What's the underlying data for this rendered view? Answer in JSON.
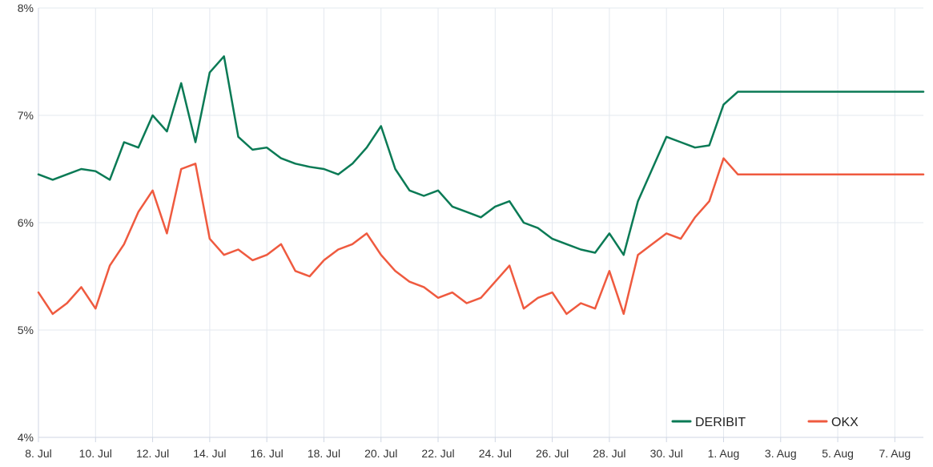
{
  "chart_data": {
    "type": "line",
    "title": "",
    "xlabel": "",
    "ylabel": "",
    "ylim": [
      4,
      8
    ],
    "y_ticks": [
      "4%",
      "5%",
      "6%",
      "7%",
      "8%"
    ],
    "x_ticks": [
      "8. Jul",
      "10. Jul",
      "12. Jul",
      "14. Jul",
      "16. Jul",
      "18. Jul",
      "20. Jul",
      "22. Jul",
      "24. Jul",
      "26. Jul",
      "28. Jul",
      "30. Jul",
      "1. Aug",
      "3. Aug",
      "5. Aug",
      "7. Aug"
    ],
    "x_range_days": [
      0,
      31
    ],
    "grid": true,
    "legend": "bottom-right",
    "colors": {
      "DERIBIT": "#0a7a55",
      "OKX": "#ef5a3f",
      "grid": "#e3e8ef",
      "axis": "#cfd6e3"
    },
    "series": [
      {
        "name": "DERIBIT",
        "x": [
          0,
          0.5,
          1,
          1.5,
          2,
          2.5,
          3,
          3.5,
          4,
          4.5,
          5,
          5.5,
          6,
          6.5,
          7,
          7.5,
          8,
          8.5,
          9,
          9.5,
          10,
          10.5,
          11,
          11.5,
          12,
          12.5,
          13,
          13.5,
          14,
          14.5,
          15,
          15.5,
          16,
          16.5,
          17,
          17.5,
          18,
          18.5,
          19,
          19.5,
          20,
          20.5,
          21,
          21.5,
          22,
          22.5,
          23,
          23.5,
          24,
          24.5,
          25,
          25.5,
          26,
          26.5,
          27,
          27.5,
          28,
          28.5,
          29,
          29.5,
          30,
          30.5,
          31
        ],
        "values": [
          6.45,
          6.4,
          6.45,
          6.5,
          6.48,
          6.4,
          6.75,
          6.7,
          7.0,
          6.85,
          7.3,
          6.75,
          7.4,
          7.55,
          6.8,
          6.68,
          6.7,
          6.6,
          6.55,
          6.52,
          6.5,
          6.45,
          6.55,
          6.7,
          6.9,
          6.5,
          6.3,
          6.25,
          6.3,
          6.15,
          6.1,
          6.05,
          6.15,
          6.2,
          6.0,
          5.95,
          5.85,
          5.8,
          5.75,
          5.72,
          5.9,
          5.7,
          6.2,
          6.5,
          6.8,
          6.75,
          6.7,
          6.72,
          7.1,
          7.22,
          7.22,
          7.22,
          7.22,
          7.22,
          7.22,
          7.22,
          7.22,
          7.22,
          7.22,
          7.22,
          7.22,
          7.22,
          7.22
        ]
      },
      {
        "name": "OKX",
        "x": [
          0,
          0.5,
          1,
          1.5,
          2,
          2.5,
          3,
          3.5,
          4,
          4.5,
          5,
          5.5,
          6,
          6.5,
          7,
          7.5,
          8,
          8.5,
          9,
          9.5,
          10,
          10.5,
          11,
          11.5,
          12,
          12.5,
          13,
          13.5,
          14,
          14.5,
          15,
          15.5,
          16,
          16.5,
          17,
          17.5,
          18,
          18.5,
          19,
          19.5,
          20,
          20.5,
          21,
          21.5,
          22,
          22.5,
          23,
          23.5,
          24,
          24.5,
          25,
          25.5,
          26,
          26.5,
          27,
          27.5,
          28,
          28.5,
          29,
          29.5,
          30,
          30.5,
          31
        ],
        "values": [
          5.35,
          5.15,
          5.25,
          5.4,
          5.2,
          5.6,
          5.8,
          6.1,
          6.3,
          5.9,
          6.5,
          6.55,
          5.85,
          5.7,
          5.75,
          5.65,
          5.7,
          5.8,
          5.55,
          5.5,
          5.65,
          5.75,
          5.8,
          5.9,
          5.7,
          5.55,
          5.45,
          5.4,
          5.3,
          5.35,
          5.25,
          5.3,
          5.45,
          5.6,
          5.2,
          5.3,
          5.35,
          5.15,
          5.25,
          5.2,
          5.55,
          5.15,
          5.7,
          5.8,
          5.9,
          5.85,
          6.05,
          6.2,
          6.6,
          6.45,
          6.45,
          6.45,
          6.45,
          6.45,
          6.45,
          6.45,
          6.45,
          6.45,
          6.45,
          6.45,
          6.45,
          6.45,
          6.45
        ]
      }
    ]
  }
}
